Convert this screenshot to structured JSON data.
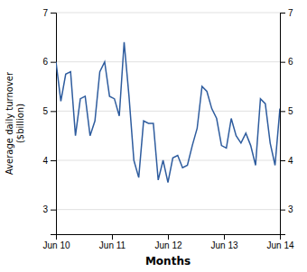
{
  "chart_data": {
    "type": "line",
    "xlabel": "Months",
    "ylabel": "Average daily turnover\n($billion)",
    "x": [
      0,
      1,
      2,
      3,
      4,
      5,
      6,
      7,
      8,
      9,
      10,
      11,
      12,
      13,
      14,
      15,
      16,
      17,
      18,
      19,
      20,
      21,
      22,
      23,
      24,
      25,
      26,
      27,
      28,
      29,
      30,
      31,
      32,
      33,
      34,
      35,
      36,
      37,
      38,
      39,
      40,
      41,
      42,
      43,
      44,
      45,
      46
    ],
    "values": [
      6.0,
      5.2,
      5.75,
      5.8,
      4.5,
      5.25,
      5.3,
      4.5,
      4.8,
      5.8,
      6.0,
      5.3,
      5.25,
      4.9,
      6.4,
      5.3,
      4.0,
      3.65,
      4.8,
      4.75,
      4.75,
      3.6,
      4.0,
      3.55,
      4.05,
      4.1,
      3.85,
      3.9,
      4.3,
      4.65,
      5.5,
      5.4,
      5.05,
      4.85,
      4.3,
      4.25,
      4.85,
      4.5,
      4.35,
      4.55,
      4.3,
      3.9,
      5.25,
      5.15,
      4.35,
      3.9,
      5.05
    ],
    "color": "#2e5c9e",
    "xlim": [
      0,
      46
    ],
    "xticks": [
      {
        "value": 0,
        "label": "Jun 10"
      },
      {
        "value": 11.5,
        "label": "Jun 11"
      },
      {
        "value": 23,
        "label": "Jun 12"
      },
      {
        "value": 34.5,
        "label": "Jun 13"
      },
      {
        "value": 46,
        "label": "Jun 14"
      }
    ],
    "ylim": [
      2.5,
      7.0
    ],
    "yticks": [
      3,
      4,
      5,
      6,
      7
    ],
    "y2lim": [
      2.5,
      7.0
    ],
    "y2ticks": [
      3,
      4,
      5,
      6,
      7
    ],
    "grid": true
  }
}
